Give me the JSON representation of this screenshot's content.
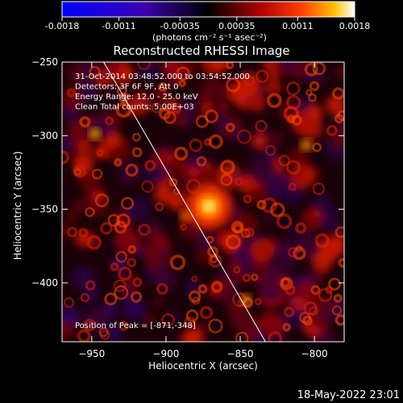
{
  "chart_data": {
    "type": "heatmap",
    "title": "Reconstructed RHESSI Image",
    "xlabel": "Heliocentric X (arcsec)",
    "ylabel": "Heliocentric Y (arcsec)",
    "xlim": [
      -970,
      -780
    ],
    "ylim": [
      -440,
      -250
    ],
    "x_ticks": [
      -950,
      -900,
      -850,
      -800
    ],
    "y_ticks": [
      -300,
      -350,
      -400,
      -250
    ],
    "colorbar": {
      "ticks": [
        "-0.0018",
        "-0.0011",
        "-0.00035",
        "0.00035",
        "0.0011",
        "0.0018"
      ],
      "range": [
        -0.0018,
        0.0018
      ],
      "unit_label": "(photons cm⁻² s⁻¹ asec⁻²)"
    },
    "annotations": [
      "31-Oct-2014 03:48:52.000 to 03:54:52.000",
      "Detectors: 3F 6F 9F, Att 0",
      "Energy Range: 12.0 - 25.0 keV",
      "Clean     Total counts: 5.00E+03"
    ],
    "peak_label": "Position of Peak = [-871,-348]",
    "peak": {
      "x": -871,
      "y": -348
    },
    "limb_line": {
      "x": [
        -942,
        -833
      ],
      "y": [
        -250,
        -440
      ]
    }
  },
  "footer": {
    "timestamp": "18-May-2022 23:01"
  }
}
